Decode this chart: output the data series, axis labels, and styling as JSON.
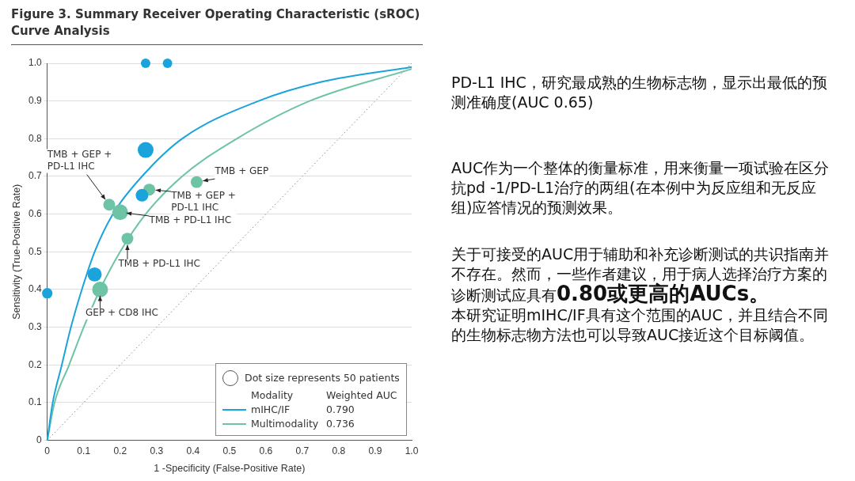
{
  "chart_data": [
    {
      "type": "scatter",
      "title": "Figure 3. Summary Receiver Operating Characteristic (sROC) Curve Analysis",
      "xlabel": "1 -Specificity (False-Positive Rate)",
      "ylabel": "Sensitivity (True-Positive Rate)",
      "xlim": [
        0,
        1
      ],
      "ylim": [
        0,
        1
      ],
      "xticks": [
        {
          "value": 0,
          "label": "0"
        },
        0.1,
        0.2,
        0.3,
        0.4,
        0.5,
        0.6,
        0.7,
        0.8,
        0.9,
        {
          "value": 1,
          "label": "1.0"
        }
      ],
      "yticks": [
        {
          "value": 0,
          "label": "0"
        },
        0.1,
        0.2,
        0.3,
        0.4,
        0.5,
        0.6,
        0.7,
        0.8,
        0.9,
        {
          "value": 1,
          "label": "1.0"
        }
      ],
      "grid": "y",
      "legend": "bottom right",
      "legend_title": "Modality",
      "size_legend": [
        {
          "value": 50,
          "label": "Dot size represents 50 patients"
        }
      ],
      "series": [
        {
          "type": "line",
          "name": "mIHC/IF",
          "color": "#1ba3dc",
          "marker": "none",
          "line_style": "solid",
          "x": [
            0,
            0.015,
            0.04,
            0.065,
            0.095,
            0.13,
            0.18,
            0.26,
            0.37,
            0.58,
            0.75,
            1
          ],
          "values": [
            0,
            0.1,
            0.2,
            0.3,
            0.4,
            0.5,
            0.6,
            0.7,
            0.8,
            0.9,
            0.95,
            0.99
          ]
        },
        {
          "type": "line",
          "name": "Multimodality",
          "color": "#6cc4a4",
          "marker": "none",
          "line_style": "solid",
          "x": [
            0,
            0.02,
            0.06,
            0.1,
            0.145,
            0.2,
            0.27,
            0.37,
            0.52,
            0.72,
            1
          ],
          "values": [
            0,
            0.1,
            0.2,
            0.3,
            0.4,
            0.5,
            0.6,
            0.7,
            0.8,
            0.9,
            0.985
          ]
        },
        {
          "type": "line",
          "color": "#888888",
          "marker": "none",
          "line_style": "dotted",
          "x": [
            0,
            1
          ],
          "values": [
            0,
            1
          ]
        },
        {
          "type": "bubble",
          "color": "#1ba3dc",
          "x": [
            0.27,
            0.33,
            0.27,
            0.26,
            0.13,
            0
          ],
          "values": [
            1,
            1,
            0.77,
            0.65,
            0.44,
            0.39
          ],
          "sizes": [
            18,
            18,
            50,
            32,
            40,
            22
          ]
        },
        {
          "type": "bubble",
          "color": "#6cc4a4",
          "x": [
            0.41,
            0.28,
            0.17,
            0.2,
            0.22,
            0.145
          ],
          "values": [
            0.685,
            0.665,
            0.625,
            0.605,
            0.535,
            0.4
          ],
          "sizes": [
            28,
            28,
            28,
            50,
            28,
            50
          ]
        }
      ],
      "annotations": [
        "Weighted AUC",
        "0.790",
        "0.736",
        {
          "text": "TMB + GEP + PD-L1 IHC",
          "x": 0.17,
          "y": 0.625
        },
        {
          "text": "TMB + GEP",
          "x": 0.41,
          "y": 0.685
        },
        {
          "text": "TMB + GEP + PD-L1 IHC",
          "x": 0.28,
          "y": 0.665
        },
        {
          "text": "TMB + PD-L1 IHC",
          "x": 0.2,
          "y": 0.605
        },
        {
          "text": "TMB + PD-L1 IHC",
          "x": 0.22,
          "y": 0.535
        },
        {
          "text": "GEP + CD8 IHC",
          "x": 0.145,
          "y": 0.4
        }
      ]
    },
    {
      "type": "other",
      "annotations": [
        "PD-L1 IHC，研究最成熟的生物标志物，显示出最低的预测准确度(AUC 0.65)",
        "AUC作为一个整体的衡量标准，用来衡量一项试验在区分抗pd -1/PD-L1治疗的两组(在本例中为反应组和无反应组)应答情况的预测效果。",
        "关于可接受的AUC用于辅助和补充诊断测试的共识指南并不存在。然而，一些作者建议，用于病人选择治疗方案的诊断测试应具有",
        "0.80或更高的AUCs。",
        "本研究证明mIHC/IF具有这个范围的AUC，并且结合不同的生物标志物方法也可以导致AUC接近这个目标阈值。"
      ]
    }
  ]
}
